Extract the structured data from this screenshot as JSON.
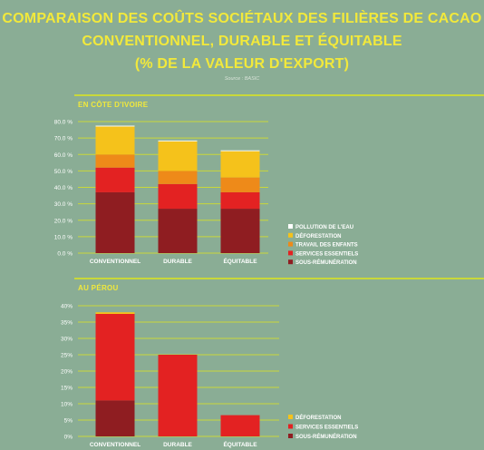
{
  "header": {
    "title_line1": "COMPARAISON DES COÛTS SOCIÉTAUX DES FILIÈRES DE CACAO",
    "title_line2": "CONVENTIONNEL, DURABLE ET ÉQUITABLE",
    "title_line3": "(% DE LA VALEUR D'EXPORT)",
    "source": "Source : BASIC"
  },
  "colors": {
    "background": "#8aad95",
    "title": "#f2e93b",
    "gridline": "#c9d83a",
    "pollution_eau": "#ffffff",
    "deforestation": "#f5c21b",
    "travail_enfants": "#ee8a19",
    "services_essentiels": "#e32222",
    "sous_remuneration": "#8f1d21"
  },
  "chart_data": [
    {
      "type": "bar",
      "stacked": true,
      "section_label": "EN CÔTE D'IVOIRE",
      "categories": [
        "CONVENTIONNEL",
        "DURABLE",
        "ÉQUITABLE"
      ],
      "ylim": [
        0,
        80
      ],
      "yticks": [
        "0.0 %",
        "10.0 %",
        "20.0 %",
        "30.0 %",
        "40.0 %",
        "50.0 %",
        "60.0 %",
        "70.0 %",
        "80.0 %"
      ],
      "series": [
        {
          "name": "SOUS-RÉMUNÉRATION",
          "color": "#8f1d21",
          "values": [
            37,
            27,
            27
          ]
        },
        {
          "name": "SERVICES ESSENTIELS",
          "color": "#e32222",
          "values": [
            15,
            15,
            10
          ]
        },
        {
          "name": "TRAVAIL DES ENFANTS",
          "color": "#ee8a19",
          "values": [
            8,
            8,
            9
          ]
        },
        {
          "name": "DÉFORESTATION",
          "color": "#f5c21b",
          "values": [
            17,
            18,
            16
          ]
        },
        {
          "name": "POLLUTION DE L'EAU",
          "color": "#ffffff",
          "values": [
            0.5,
            0.5,
            0.5
          ]
        }
      ],
      "legend": [
        "POLLUTION DE L'EAU",
        "DÉFORESTATION",
        "TRAVAIL DES ENFANTS",
        "SERVICES ESSENTIELS",
        "SOUS-RÉMUNÉRATION"
      ],
      "grid": true,
      "legend_position": "right"
    },
    {
      "type": "bar",
      "stacked": true,
      "section_label": "AU PÉROU",
      "categories": [
        "CONVENTIONNEL",
        "DURABLE",
        "ÉQUITABLE"
      ],
      "ylim": [
        0,
        40
      ],
      "yticks": [
        "0%",
        "5%",
        "10%",
        "15%",
        "20%",
        "25%",
        "30%",
        "35%",
        "40%"
      ],
      "series": [
        {
          "name": "SOUS-RÉMUNÉRATION",
          "color": "#8f1d21",
          "values": [
            11,
            0,
            0
          ]
        },
        {
          "name": "SERVICES ESSENTIELS",
          "color": "#e32222",
          "values": [
            26.5,
            25,
            6.5
          ]
        },
        {
          "name": "DÉFORESTATION",
          "color": "#f5c21b",
          "values": [
            0.5,
            0,
            0
          ]
        }
      ],
      "legend": [
        "DÉFORESTATION",
        "SERVICES ESSENTIELS",
        "SOUS-RÉMUNÉRATION"
      ],
      "grid": true,
      "legend_position": "right"
    }
  ]
}
